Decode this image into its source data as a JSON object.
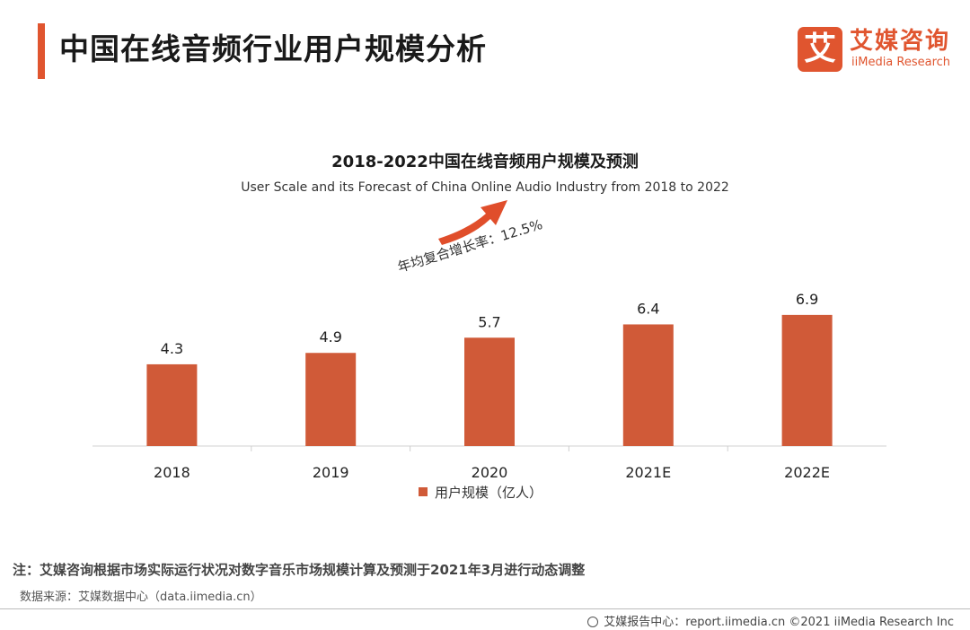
{
  "header": {
    "title": "中国在线音频行业用户规模分析",
    "logo_mark": "艾",
    "logo_cn": "艾媒咨询",
    "logo_en": "iiMedia Research"
  },
  "annotation": {
    "cagr": "年均复合增长率：12.5%"
  },
  "chart_data": {
    "type": "bar",
    "title": "2018-2022中国在线音频用户规模及预测",
    "subtitle": "User Scale and its Forecast of China Online Audio Industry from 2018 to 2022",
    "categories": [
      "2018",
      "2019",
      "2020",
      "2021E",
      "2022E"
    ],
    "series": [
      {
        "name": "用户规模（亿人）",
        "values": [
          4.3,
          4.9,
          5.7,
          6.4,
          6.9
        ]
      }
    ],
    "value_labels": [
      "4.3",
      "4.9",
      "5.7",
      "6.4",
      "6.9"
    ],
    "xlabel": "",
    "ylabel": "",
    "ylim": [
      0,
      8.5
    ],
    "legend": "bottom-center",
    "grid": false,
    "bar_color": "#d05a38"
  },
  "footer": {
    "note": "注：艾媒咨询根据市场实际运行状况对数字音乐市场规模计算及预测于2021年3月进行动态调整",
    "source": "数据来源：艾媒数据中心（data.iimedia.cn）",
    "copyright": "艾媒报告中心：report.iimedia.cn ©2021  iiMedia Research  Inc"
  }
}
